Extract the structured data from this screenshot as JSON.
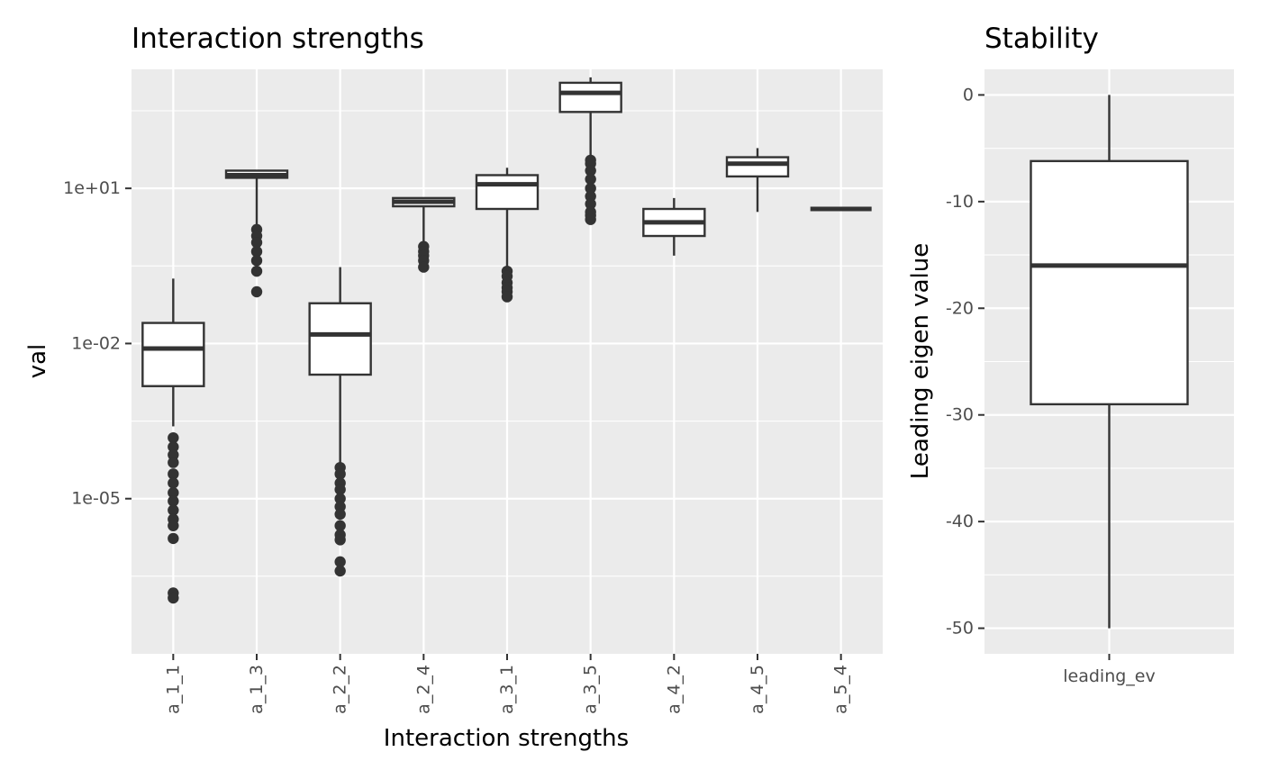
{
  "chart_data": [
    {
      "type": "boxplot",
      "title": "Interaction strengths",
      "xlabel": "Interaction strengths",
      "ylabel": "val",
      "yscale": "log10",
      "ylim": [
        1e-08,
        2000
      ],
      "yticks": [
        {
          "value": 1e-05,
          "label": "1e-05"
        },
        {
          "value": 0.01,
          "label": "1e-02"
        },
        {
          "value": 10,
          "label": "1e+01"
        }
      ],
      "grid": true,
      "categories": [
        "a_1_1",
        "a_1_3",
        "a_2_2",
        "a_2_4",
        "a_3_1",
        "a_3_5",
        "a_4_2",
        "a_4_5",
        "a_5_4"
      ],
      "boxes": [
        {
          "category": "a_1_1",
          "lower": 0.00025,
          "q1": 0.0015,
          "median": 0.008,
          "q3": 0.025,
          "upper": 0.18,
          "outliers": [
            0.00015,
            0.0001,
            7e-05,
            5e-05,
            3e-05,
            2e-05,
            1.3e-05,
            9e-06,
            6e-06,
            4e-06,
            3e-06,
            1.7e-06,
            1.5e-07,
            1.2e-07
          ]
        },
        {
          "category": "a_1_3",
          "lower": 2,
          "q1": 16,
          "median": 18,
          "q3": 22,
          "upper": 22,
          "outliers": [
            1.6,
            1.2,
            0.9,
            0.6,
            0.4,
            0.25,
            0.1
          ]
        },
        {
          "category": "a_2_2",
          "lower": 5e-05,
          "q1": 0.0025,
          "median": 0.015,
          "q3": 0.06,
          "upper": 0.3,
          "outliers": [
            4e-05,
            3e-05,
            2e-05,
            1.5e-05,
            1e-05,
            7e-06,
            5e-06,
            3e-06,
            2e-06,
            1.6e-06,
            6e-07,
            4e-07
          ]
        },
        {
          "category": "a_2_4",
          "lower": 0.8,
          "q1": 4.5,
          "median": 5.5,
          "q3": 6.5,
          "upper": 6.5,
          "outliers": [
            0.75,
            0.6,
            0.5,
            0.4,
            0.3
          ]
        },
        {
          "category": "a_3_1",
          "lower": 0.3,
          "q1": 4,
          "median": 12,
          "q3": 18,
          "upper": 25,
          "outliers": [
            0.25,
            0.2,
            0.15,
            0.12,
            0.1,
            0.08
          ]
        },
        {
          "category": "a_3_5",
          "lower": 40,
          "q1": 300,
          "median": 700,
          "q3": 1100,
          "upper": 1400,
          "outliers": [
            35,
            30,
            22,
            15,
            10,
            7,
            5,
            3.5,
            3,
            2.5
          ]
        },
        {
          "category": "a_4_2",
          "lower": 0.5,
          "q1": 1.2,
          "median": 2.2,
          "q3": 4,
          "upper": 6.5,
          "outliers": []
        },
        {
          "category": "a_4_5",
          "lower": 3.5,
          "q1": 17,
          "median": 30,
          "q3": 40,
          "upper": 60,
          "outliers": []
        },
        {
          "category": "a_5_4",
          "lower": 4,
          "q1": 4,
          "median": 4,
          "q3": 4,
          "upper": 4,
          "outliers": []
        }
      ]
    },
    {
      "type": "boxplot",
      "title": "Stability",
      "xlabel": "",
      "ylabel": "Leading eigen value",
      "ylim": [
        -52.4,
        2.4
      ],
      "yticks": [
        0,
        -10,
        -20,
        -30,
        -40,
        -50
      ],
      "grid": true,
      "categories": [
        "leading_ev"
      ],
      "boxes": [
        {
          "category": "leading_ev",
          "lower": -50,
          "q1": -29,
          "median": -16,
          "q3": -6.2,
          "upper": 0,
          "outliers": []
        }
      ]
    }
  ]
}
